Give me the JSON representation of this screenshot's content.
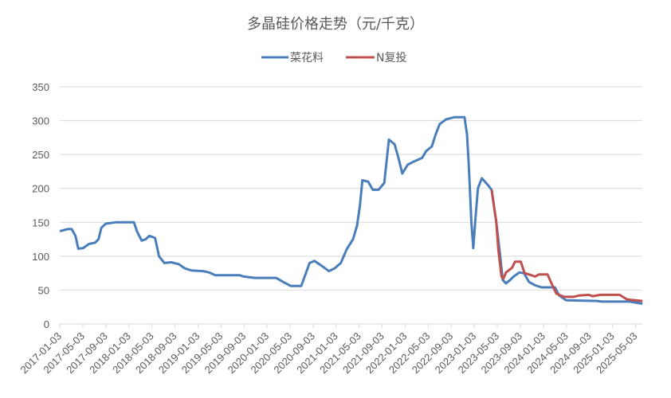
{
  "chart_data": {
    "type": "line",
    "title": "多晶硅价格走势（元/千克）",
    "xlabel": "",
    "ylabel": "",
    "ylim": [
      0,
      350
    ],
    "yticks": [
      0,
      50,
      100,
      150,
      200,
      250,
      300,
      350
    ],
    "xlim": [
      "2017-01-03",
      "2025-06-15"
    ],
    "xticks": [
      "2017-01-03",
      "2017-05-03",
      "2017-09-03",
      "2018-01-03",
      "2018-05-03",
      "2018-09-03",
      "2019-01-03",
      "2019-05-03",
      "2019-09-03",
      "2020-01-03",
      "2020-05-03",
      "2020-09-03",
      "2021-01-03",
      "2021-05-03",
      "2021-09-03",
      "2022-01-03",
      "2022-05-03",
      "2022-09-03",
      "2023-01-03",
      "2023-05-03",
      "2023-09-03",
      "2024-01-03",
      "2024-05-03",
      "2024-09-03",
      "2025-01-03",
      "2025-05-03"
    ],
    "grid": "horizontal",
    "legend_position": "top",
    "series": [
      {
        "name": "菜花料",
        "color": "#4a7ebb",
        "points": [
          [
            "2017-01-03",
            137
          ],
          [
            "2017-02-15",
            140
          ],
          [
            "2017-03-05",
            140
          ],
          [
            "2017-03-25",
            130
          ],
          [
            "2017-04-10",
            111
          ],
          [
            "2017-05-05",
            112
          ],
          [
            "2017-06-05",
            118
          ],
          [
            "2017-07-08",
            120
          ],
          [
            "2017-07-25",
            125
          ],
          [
            "2017-08-10",
            142
          ],
          [
            "2017-09-03",
            148
          ],
          [
            "2017-10-25",
            150
          ],
          [
            "2018-01-30",
            150
          ],
          [
            "2018-02-15",
            137
          ],
          [
            "2018-03-10",
            123
          ],
          [
            "2018-04-01",
            125
          ],
          [
            "2018-04-20",
            130
          ],
          [
            "2018-05-20",
            127
          ],
          [
            "2018-06-10",
            100
          ],
          [
            "2018-07-08",
            90
          ],
          [
            "2018-08-15",
            91
          ],
          [
            "2018-09-25",
            88
          ],
          [
            "2018-10-25",
            82
          ],
          [
            "2018-11-28",
            79
          ],
          [
            "2019-01-30",
            78
          ],
          [
            "2019-03-01",
            76
          ],
          [
            "2019-04-03",
            72
          ],
          [
            "2019-08-10",
            72
          ],
          [
            "2019-09-01",
            70
          ],
          [
            "2019-10-28",
            68
          ],
          [
            "2020-02-20",
            68
          ],
          [
            "2020-03-27",
            62
          ],
          [
            "2020-05-07",
            56
          ],
          [
            "2020-07-01",
            56
          ],
          [
            "2020-08-15",
            90
          ],
          [
            "2020-09-10",
            93
          ],
          [
            "2020-10-22",
            85
          ],
          [
            "2020-11-25",
            78
          ],
          [
            "2020-12-25",
            82
          ],
          [
            "2021-01-28",
            90
          ],
          [
            "2021-02-28",
            110
          ],
          [
            "2021-04-01",
            125
          ],
          [
            "2021-04-22",
            145
          ],
          [
            "2021-05-07",
            175
          ],
          [
            "2021-05-20",
            212
          ],
          [
            "2021-06-20",
            210
          ],
          [
            "2021-07-14",
            198
          ],
          [
            "2021-08-14",
            198
          ],
          [
            "2021-09-14",
            208
          ],
          [
            "2021-10-08",
            272
          ],
          [
            "2021-11-08",
            265
          ],
          [
            "2021-11-28",
            245
          ],
          [
            "2021-12-18",
            222
          ],
          [
            "2022-01-16",
            235
          ],
          [
            "2022-02-20",
            240
          ],
          [
            "2022-04-01",
            245
          ],
          [
            "2022-04-22",
            255
          ],
          [
            "2022-05-22",
            262
          ],
          [
            "2022-06-12",
            280
          ],
          [
            "2022-07-03",
            295
          ],
          [
            "2022-08-06",
            302
          ],
          [
            "2022-09-18",
            305
          ],
          [
            "2022-11-12",
            305
          ],
          [
            "2022-11-25",
            280
          ],
          [
            "2022-12-03",
            240
          ],
          [
            "2022-12-10",
            200
          ],
          [
            "2022-12-18",
            150
          ],
          [
            "2022-12-28",
            112
          ],
          [
            "2023-01-10",
            160
          ],
          [
            "2023-01-22",
            200
          ],
          [
            "2023-02-12",
            215
          ],
          [
            "2023-03-14",
            205
          ],
          [
            "2023-04-03",
            198
          ],
          [
            "2023-04-28",
            150
          ],
          [
            "2023-05-18",
            100
          ],
          [
            "2023-06-01",
            65
          ],
          [
            "2023-06-18",
            60
          ],
          [
            "2023-07-10",
            65
          ],
          [
            "2023-07-28",
            70
          ],
          [
            "2023-08-28",
            76
          ],
          [
            "2023-09-22",
            75
          ],
          [
            "2023-10-18",
            62
          ],
          [
            "2023-11-21",
            57
          ],
          [
            "2023-12-24",
            54
          ],
          [
            "2024-03-03",
            54
          ],
          [
            "2024-03-25",
            42
          ],
          [
            "2024-05-01",
            35
          ],
          [
            "2024-10-15",
            34
          ],
          [
            "2024-11-05",
            33
          ],
          [
            "2025-04-03",
            33
          ],
          [
            "2025-06-09",
            30
          ]
        ]
      },
      {
        "name": "N复投",
        "color": "#c0504d",
        "points": [
          [
            "2023-04-03",
            198
          ],
          [
            "2023-04-28",
            150
          ],
          [
            "2023-05-08",
            110
          ],
          [
            "2023-05-25",
            70
          ],
          [
            "2023-06-05",
            67
          ],
          [
            "2023-06-18",
            76
          ],
          [
            "2023-07-20",
            83
          ],
          [
            "2023-08-05",
            92
          ],
          [
            "2023-09-05",
            92
          ],
          [
            "2023-09-25",
            75
          ],
          [
            "2023-10-30",
            72
          ],
          [
            "2023-11-20",
            70
          ],
          [
            "2023-12-10",
            73
          ],
          [
            "2024-01-25",
            73
          ],
          [
            "2024-02-15",
            60
          ],
          [
            "2024-03-10",
            45
          ],
          [
            "2024-04-20",
            40
          ],
          [
            "2024-06-10",
            40
          ],
          [
            "2024-07-10",
            42
          ],
          [
            "2024-08-30",
            43
          ],
          [
            "2024-09-20",
            41
          ],
          [
            "2024-10-30",
            43
          ],
          [
            "2025-02-10",
            43
          ],
          [
            "2025-03-20",
            36
          ],
          [
            "2025-06-09",
            34
          ]
        ]
      }
    ]
  }
}
